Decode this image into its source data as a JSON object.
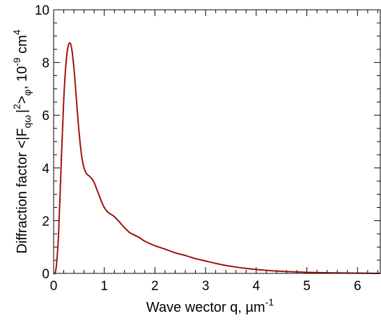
{
  "chart_data": {
    "type": "line",
    "xlabel": "Wave wector q, µm",
    "xlabel_superscript": "-1",
    "ylabel_parts": {
      "prefix": "Diffraction factor <|F",
      "subscript": "qω",
      "mid": "|",
      "superscript": "2",
      "after": ">",
      "subscript2": "φ",
      "suffix": ", 10",
      "superscript2": "-9",
      "units": " cm",
      "superscript3": "4"
    },
    "xlim": [
      0,
      6.45
    ],
    "ylim": [
      0,
      10
    ],
    "xticks": [
      0,
      1,
      2,
      3,
      4,
      5,
      6
    ],
    "yticks": [
      0,
      2,
      4,
      6,
      8,
      10
    ],
    "xtick_labels": [
      "0",
      "1",
      "2",
      "3",
      "4",
      "5",
      "6"
    ],
    "ytick_labels": [
      "0",
      "2",
      "4",
      "6",
      "8",
      "10"
    ],
    "grid": false,
    "series": [
      {
        "color": "#a01010",
        "x": [
          0,
          0.03,
          0.06,
          0.1,
          0.15,
          0.2,
          0.25,
          0.3,
          0.35,
          0.4,
          0.45,
          0.5,
          0.55,
          0.6,
          0.65,
          0.7,
          0.75,
          0.8,
          0.85,
          0.9,
          0.95,
          1.0,
          1.05,
          1.1,
          1.15,
          1.2,
          1.3,
          1.4,
          1.5,
          1.6,
          1.7,
          1.8,
          2.0,
          2.2,
          2.4,
          2.6,
          2.8,
          3.0,
          3.2,
          3.4,
          3.6,
          3.8,
          4.0,
          4.3,
          4.6,
          5.0,
          5.5,
          6.0,
          6.45
        ],
        "y": [
          0.0,
          0.02,
          0.4,
          1.6,
          4.2,
          6.6,
          8.1,
          8.7,
          8.6,
          7.8,
          6.6,
          5.4,
          4.5,
          4.0,
          3.78,
          3.7,
          3.6,
          3.45,
          3.2,
          2.95,
          2.7,
          2.5,
          2.36,
          2.28,
          2.22,
          2.15,
          1.95,
          1.73,
          1.55,
          1.45,
          1.35,
          1.22,
          1.05,
          0.92,
          0.78,
          0.68,
          0.56,
          0.47,
          0.38,
          0.3,
          0.24,
          0.19,
          0.15,
          0.1,
          0.07,
          0.04,
          0.02,
          0.01,
          0.0
        ]
      }
    ]
  }
}
